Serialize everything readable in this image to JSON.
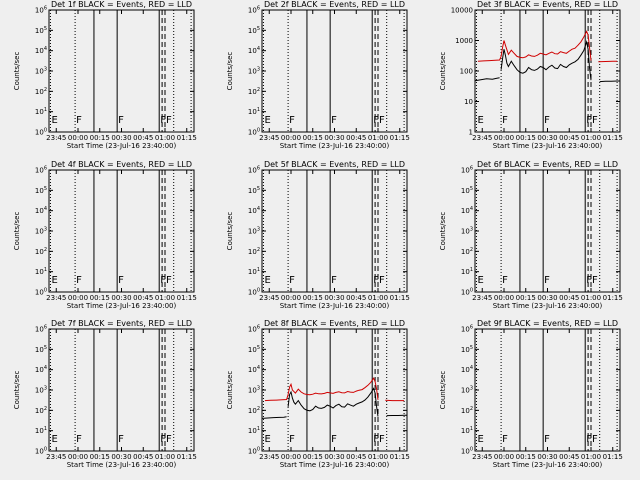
{
  "panel_titles": [
    "Det 1f BLACK = Events, RED = LLD",
    "Det 2f BLACK = Events, RED = LLD",
    "Det 3f BLACK = Events, RED = LLD",
    "Det 4f BLACK = Events, RED = LLD",
    "Det 5f BLACK = Events, RED = LLD",
    "Det 6f BLACK = Events, RED = LLD",
    "Det 7f BLACK = Events, RED = LLD",
    "Det 8f BLACK = Events, RED = LLD",
    "Det 9f BLACK = Events, RED = LLD"
  ],
  "colors": {
    "events": "#000000",
    "lld": "#d00000",
    "background": "#efefef"
  },
  "chart_data": [
    {
      "type": "line",
      "title": "Det 1f BLACK = Events, RED = LLD",
      "xlabel": "Start Time (23-Jul-16 23:40:00)",
      "ylabel": "Counts/sec",
      "xlim": [
        "23:40",
        "01:20"
      ],
      "x_ticks": [
        "23:45",
        "00:00",
        "00:15",
        "00:30",
        "00:45",
        "01:00",
        "01:15"
      ],
      "y_scale": "log",
      "ylim": [
        1,
        1000000
      ],
      "y_ticks": [
        "10^0",
        "10^1",
        "10^2",
        "10^3",
        "10^4",
        "10^5",
        "10^6"
      ],
      "markers": [
        "E",
        "F",
        "F",
        "F",
        "F"
      ],
      "series": []
    },
    {
      "type": "line",
      "title": "Det 2f BLACK = Events, RED = LLD",
      "xlabel": "Start Time (23-Jul-16 23:40:00)",
      "ylabel": "Counts/sec",
      "xlim": [
        "23:40",
        "01:20"
      ],
      "x_ticks": [
        "23:45",
        "00:00",
        "00:15",
        "00:30",
        "00:45",
        "01:00",
        "01:15"
      ],
      "y_scale": "log",
      "ylim": [
        1,
        1000000
      ],
      "y_ticks": [
        "10^0",
        "10^1",
        "10^2",
        "10^3",
        "10^4",
        "10^5",
        "10^6"
      ],
      "markers": [
        "E",
        "F",
        "F",
        "F",
        "F"
      ],
      "series": []
    },
    {
      "type": "line",
      "title": "Det 3f BLACK = Events, RED = LLD",
      "xlabel": "Start Time (23-Jul-16 23:40:00)",
      "ylabel": "Counts/sec",
      "xlim": [
        "23:40",
        "01:20"
      ],
      "x_ticks": [
        "23:45",
        "00:00",
        "00:15",
        "00:30",
        "00:45",
        "01:00",
        "01:15"
      ],
      "y_scale": "log",
      "ylim": [
        1,
        10000
      ],
      "y_ticks": [
        "1",
        "10",
        "100",
        "1000",
        "10000"
      ],
      "markers": [
        "E",
        "F",
        "F",
        "F",
        "F"
      ],
      "series": [
        {
          "role": "events",
          "segments": [
            {
              "x": [
                "23:40",
                "23:44",
                "23:48",
                "23:52",
                "23:55",
                "23:57"
              ],
              "y": [
                48,
                52,
                56,
                54,
                58,
                60
              ]
            },
            {
              "x": [
                "23:58",
                "23:59",
                "00:00",
                "00:01",
                "00:02",
                "00:03",
                "00:05",
                "00:07",
                "00:09",
                "00:11",
                "00:13",
                "00:15",
                "00:17",
                "00:19",
                "00:21",
                "00:23",
                "00:25",
                "00:27",
                "00:29",
                "00:31",
                "00:33",
                "00:35",
                "00:37",
                "00:39",
                "00:41",
                "00:43",
                "00:45",
                "00:47",
                "00:49",
                "00:51",
                "00:53",
                "00:55",
                "00:57",
                "00:58",
                "00:59",
                "01:00"
              ],
              "y": [
                110,
                260,
                520,
                330,
                180,
                140,
                210,
                150,
                110,
                90,
                85,
                95,
                130,
                110,
                105,
                115,
                140,
                130,
                110,
                135,
                155,
                125,
                120,
                165,
                140,
                130,
                160,
                180,
                200,
                240,
                330,
                470,
                900,
                520,
                130,
                50
              ]
            },
            {
              "x": [
                "01:06",
                "01:10",
                "01:14",
                "01:18",
                "01:20"
              ],
              "y": [
                45,
                46,
                46,
                47,
                47
              ]
            }
          ]
        },
        {
          "role": "lld",
          "segments": [
            {
              "x": [
                "23:42",
                "23:46",
                "23:50",
                "23:54",
                "23:57",
                "23:58",
                "23:59",
                "00:00",
                "00:01",
                "00:03",
                "00:05",
                "00:07",
                "00:09",
                "00:11",
                "00:13",
                "00:15",
                "00:17",
                "00:19",
                "00:21",
                "00:23",
                "00:25",
                "00:27",
                "00:29",
                "00:31",
                "00:33",
                "00:35",
                "00:37",
                "00:39",
                "00:41",
                "00:43",
                "00:45",
                "00:47",
                "00:49",
                "00:51",
                "00:53",
                "00:55",
                "00:57",
                "00:58",
                "00:59",
                "01:00"
              ],
              "y": [
                210,
                215,
                220,
                225,
                230,
                300,
                600,
                1000,
                700,
                350,
                480,
                380,
                300,
                280,
                270,
                290,
                340,
                310,
                300,
                330,
                380,
                360,
                340,
                380,
                420,
                370,
                360,
                430,
                400,
                380,
                450,
                520,
                560,
                700,
                900,
                1300,
                2000,
                1500,
                600,
                220
              ]
            },
            {
              "x": [
                "01:05",
                "01:10",
                "01:15",
                "01:18"
              ],
              "y": [
                200,
                205,
                210,
                210
              ]
            }
          ]
        }
      ]
    },
    {
      "type": "line",
      "title": "Det 4f BLACK = Events, RED = LLD",
      "xlabel": "Start Time (23-Jul-16 23:40:00)",
      "ylabel": "Counts/sec",
      "xlim": [
        "23:40",
        "01:20"
      ],
      "x_ticks": [
        "23:45",
        "00:00",
        "00:15",
        "00:30",
        "00:45",
        "01:00",
        "01:15"
      ],
      "y_scale": "log",
      "ylim": [
        1,
        1000000
      ],
      "y_ticks": [
        "10^0",
        "10^1",
        "10^2",
        "10^3",
        "10^4",
        "10^5",
        "10^6"
      ],
      "markers": [
        "E",
        "F",
        "F",
        "F",
        "F"
      ],
      "series": []
    },
    {
      "type": "line",
      "title": "Det 5f BLACK = Events, RED = LLD",
      "xlabel": "Start Time (23-Jul-16 23:40:00)",
      "ylabel": "Counts/sec",
      "xlim": [
        "23:40",
        "01:20"
      ],
      "x_ticks": [
        "23:45",
        "00:00",
        "00:15",
        "00:30",
        "00:45",
        "01:00",
        "01:15"
      ],
      "y_scale": "log",
      "ylim": [
        1,
        1000000
      ],
      "y_ticks": [
        "10^0",
        "10^1",
        "10^2",
        "10^3",
        "10^4",
        "10^5",
        "10^6"
      ],
      "markers": [
        "E",
        "F",
        "F",
        "F",
        "F"
      ],
      "series": []
    },
    {
      "type": "line",
      "title": "Det 6f BLACK = Events, RED = LLD",
      "xlabel": "Start Time (23-Jul-16 23:40:00)",
      "ylabel": "Counts/sec",
      "xlim": [
        "23:40",
        "01:20"
      ],
      "x_ticks": [
        "23:45",
        "00:00",
        "00:15",
        "00:30",
        "00:45",
        "01:00",
        "01:15"
      ],
      "y_scale": "log",
      "ylim": [
        1,
        1000000
      ],
      "y_ticks": [
        "10^0",
        "10^1",
        "10^2",
        "10^3",
        "10^4",
        "10^5",
        "10^6"
      ],
      "markers": [
        "E",
        "F",
        "F",
        "F",
        "F"
      ],
      "series": []
    },
    {
      "type": "line",
      "title": "Det 7f BLACK = Events, RED = LLD",
      "xlabel": "Start Time (23-Jul-16 23:40:00)",
      "ylabel": "Counts/sec",
      "xlim": [
        "23:40",
        "01:20"
      ],
      "x_ticks": [
        "23:45",
        "00:00",
        "00:15",
        "00:30",
        "00:45",
        "01:00",
        "01:15"
      ],
      "y_scale": "log",
      "ylim": [
        1,
        1000000
      ],
      "y_ticks": [
        "10^0",
        "10^1",
        "10^2",
        "10^3",
        "10^4",
        "10^5",
        "10^6"
      ],
      "markers": [
        "E",
        "F",
        "F",
        "F",
        "F"
      ],
      "series": []
    },
    {
      "type": "line",
      "title": "Det 8f BLACK = Events, RED = LLD",
      "xlabel": "Start Time (23-Jul-16 23:40:00)",
      "ylabel": "Counts/sec",
      "xlim": [
        "23:40",
        "01:20"
      ],
      "x_ticks": [
        "23:45",
        "00:00",
        "00:15",
        "00:30",
        "00:45",
        "01:00",
        "01:15"
      ],
      "y_scale": "log",
      "ylim": [
        1,
        1000000
      ],
      "y_ticks": [
        "10^0",
        "10^1",
        "10^2",
        "10^3",
        "10^4",
        "10^5",
        "10^6"
      ],
      "markers": [
        "E",
        "F",
        "F",
        "F",
        "F"
      ],
      "series": [
        {
          "role": "events",
          "segments": [
            {
              "x": [
                "23:40",
                "23:44",
                "23:48",
                "23:52",
                "23:55",
                "23:57"
              ],
              "y": [
                40,
                42,
                44,
                45,
                46,
                48
              ]
            },
            {
              "x": [
                "23:58",
                "23:59",
                "00:00",
                "00:01",
                "00:02",
                "00:03",
                "00:05",
                "00:07",
                "00:09",
                "00:11",
                "00:13",
                "00:15",
                "00:17",
                "00:19",
                "00:21",
                "00:23",
                "00:25",
                "00:27",
                "00:29",
                "00:31",
                "00:33",
                "00:35",
                "00:37",
                "00:39",
                "00:41",
                "00:43",
                "00:45",
                "00:47",
                "00:49",
                "00:51",
                "00:53",
                "00:55",
                "00:57",
                "00:58",
                "00:59",
                "01:00"
              ],
              "y": [
                150,
                600,
                800,
                400,
                250,
                200,
                300,
                180,
                120,
                100,
                95,
                110,
                160,
                130,
                125,
                140,
                180,
                160,
                130,
                170,
                200,
                150,
                145,
                210,
                180,
                160,
                200,
                230,
                260,
                320,
                450,
                700,
                1200,
                700,
                150,
                50
              ]
            },
            {
              "x": [
                "01:06",
                "01:10",
                "01:14",
                "01:18",
                "01:20"
              ],
              "y": [
                55,
                56,
                56,
                57,
                57
              ]
            }
          ]
        },
        {
          "role": "lld",
          "segments": [
            {
              "x": [
                "23:42",
                "23:46",
                "23:50",
                "23:54",
                "23:57",
                "23:58",
                "23:59",
                "00:00",
                "00:01",
                "00:03",
                "00:05",
                "00:07",
                "00:09",
                "00:11",
                "00:13",
                "00:15",
                "00:17",
                "00:19",
                "00:21",
                "00:23",
                "00:25",
                "00:27",
                "00:29",
                "00:31",
                "00:33",
                "00:35",
                "00:37",
                "00:39",
                "00:41",
                "00:43",
                "00:45",
                "00:47",
                "00:49",
                "00:51",
                "00:53",
                "00:55",
                "00:57",
                "00:58",
                "00:59",
                "01:00"
              ],
              "y": [
                300,
                310,
                320,
                330,
                340,
                600,
                1400,
                1900,
                1000,
                700,
                1100,
                800,
                650,
                600,
                580,
                620,
                700,
                650,
                640,
                680,
                760,
                720,
                680,
                760,
                820,
                740,
                720,
                840,
                790,
                760,
                880,
                980,
                1050,
                1300,
                1700,
                2400,
                3800,
                2600,
                1100,
                330
              ]
            },
            {
              "x": [
                "01:05",
                "01:10",
                "01:15",
                "01:18"
              ],
              "y": [
                310,
                300,
                300,
                300
              ]
            }
          ]
        }
      ]
    },
    {
      "type": "line",
      "title": "Det 9f BLACK = Events, RED = LLD",
      "xlabel": "Start Time (23-Jul-16 23:40:00)",
      "ylabel": "Counts/sec",
      "xlim": [
        "23:40",
        "01:20"
      ],
      "x_ticks": [
        "23:45",
        "00:00",
        "00:15",
        "00:30",
        "00:45",
        "01:00",
        "01:15"
      ],
      "y_scale": "log",
      "ylim": [
        1,
        1000000
      ],
      "y_ticks": [
        "10^0",
        "10^1",
        "10^2",
        "10^3",
        "10^4",
        "10^5",
        "10^6"
      ],
      "markers": [
        "E",
        "F",
        "F",
        "F",
        "F"
      ],
      "series": []
    }
  ]
}
